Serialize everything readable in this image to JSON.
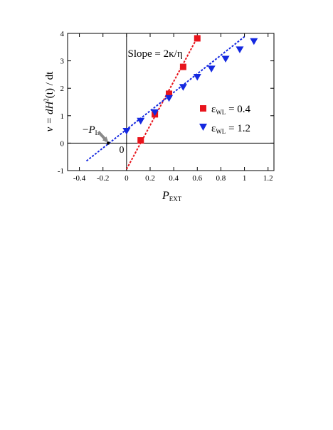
{
  "chart_data": {
    "type": "scatter",
    "xlim": [
      -0.5,
      1.25
    ],
    "ylim": [
      -1,
      4
    ],
    "x_ticks": [
      -0.4,
      -0.2,
      0,
      0.2,
      0.4,
      0.6,
      0.8,
      1,
      1.2
    ],
    "x_tick_labels": [
      "-0.4",
      "-0.2",
      "0",
      "0.2",
      "0.4",
      "0.6",
      "0.8",
      "1",
      "1.2"
    ],
    "y_ticks": [
      -1,
      0,
      1,
      2,
      3,
      4
    ],
    "y_tick_labels": [
      "-1",
      "0",
      "1",
      "2",
      "3",
      "4"
    ],
    "xlabel": {
      "main": "P",
      "sub": "EXT"
    },
    "ylabel": {
      "pre": "v = dH",
      "sup": "2",
      "post": "(t) / dt"
    },
    "grid": false,
    "legend_position": "right",
    "series": [
      {
        "name_symbol": "ε",
        "name_sub": "WL",
        "name_value": " = 0.4",
        "marker": "square",
        "color": "#e8141c",
        "x": [
          0.12,
          0.24,
          0.36,
          0.48,
          0.6
        ],
        "y": [
          0.1,
          1.05,
          1.8,
          2.78,
          3.82
        ],
        "fit": {
          "x": [
            0,
            0.6
          ],
          "y": [
            -0.95,
            3.85
          ]
        }
      },
      {
        "name_symbol": "ε",
        "name_sub": "WL",
        "name_value": " = 1.2",
        "marker": "triangle-down",
        "color": "#1428e0",
        "x": [
          0,
          0.12,
          0.24,
          0.36,
          0.48,
          0.6,
          0.72,
          0.84,
          0.96,
          1.08
        ],
        "y": [
          0.45,
          0.82,
          1.13,
          1.65,
          2.05,
          2.42,
          2.72,
          3.08,
          3.42,
          3.72
        ],
        "fit": {
          "x": [
            -0.34,
            1.0
          ],
          "y": [
            -0.65,
            3.88
          ]
        }
      }
    ],
    "annotations": {
      "slope": {
        "text": "Slope = 2κ/η",
        "x": 0.01,
        "y": 3.15
      },
      "pl": {
        "prefix": "−",
        "main": "P",
        "sub": "L",
        "point_x": -0.155,
        "point_y": 0
      },
      "zero": {
        "text": "0",
        "x": -0.02,
        "y": -0.12
      }
    }
  }
}
